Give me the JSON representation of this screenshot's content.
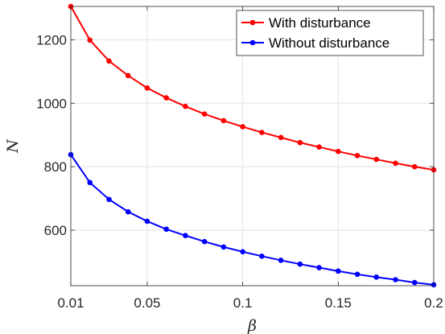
{
  "chart_data": {
    "type": "line",
    "xlabel": "β",
    "ylabel": "N",
    "xlim": [
      0.01,
      0.2
    ],
    "ylim": [
      425,
      1305
    ],
    "x": [
      0.01,
      0.02,
      0.03,
      0.04,
      0.05,
      0.06,
      0.07,
      0.08,
      0.09,
      0.1,
      0.11,
      0.12,
      0.13,
      0.14,
      0.15,
      0.16,
      0.17,
      0.18,
      0.19,
      0.2
    ],
    "x_ticks": [
      {
        "value": 0.01,
        "label": "0.01"
      },
      {
        "value": 0.05,
        "label": "0.05"
      },
      {
        "value": 0.1,
        "label": "0.1"
      },
      {
        "value": 0.15,
        "label": "0.15"
      },
      {
        "value": 0.2,
        "label": "0.2"
      }
    ],
    "y_ticks": [
      {
        "value": 600,
        "label": "600"
      },
      {
        "value": 800,
        "label": "800"
      },
      {
        "value": 1000,
        "label": "1000"
      },
      {
        "value": 1200,
        "label": "1200"
      }
    ],
    "grid": true,
    "legend_position": "top-right",
    "series": [
      {
        "name": "With disturbance",
        "color": "#ff0000",
        "marker": "dot",
        "values": [
          1305,
          1199,
          1133,
          1087,
          1048,
          1017,
          990,
          966,
          945,
          926,
          908,
          892,
          876,
          862,
          848,
          835,
          823,
          811,
          800,
          790
        ]
      },
      {
        "name": "Without disturbance",
        "color": "#0000ff",
        "marker": "dot",
        "values": [
          838,
          750,
          697,
          658,
          628,
          603,
          583,
          564,
          547,
          532,
          518,
          505,
          493,
          482,
          471,
          461,
          452,
          444,
          435,
          428
        ]
      }
    ]
  }
}
